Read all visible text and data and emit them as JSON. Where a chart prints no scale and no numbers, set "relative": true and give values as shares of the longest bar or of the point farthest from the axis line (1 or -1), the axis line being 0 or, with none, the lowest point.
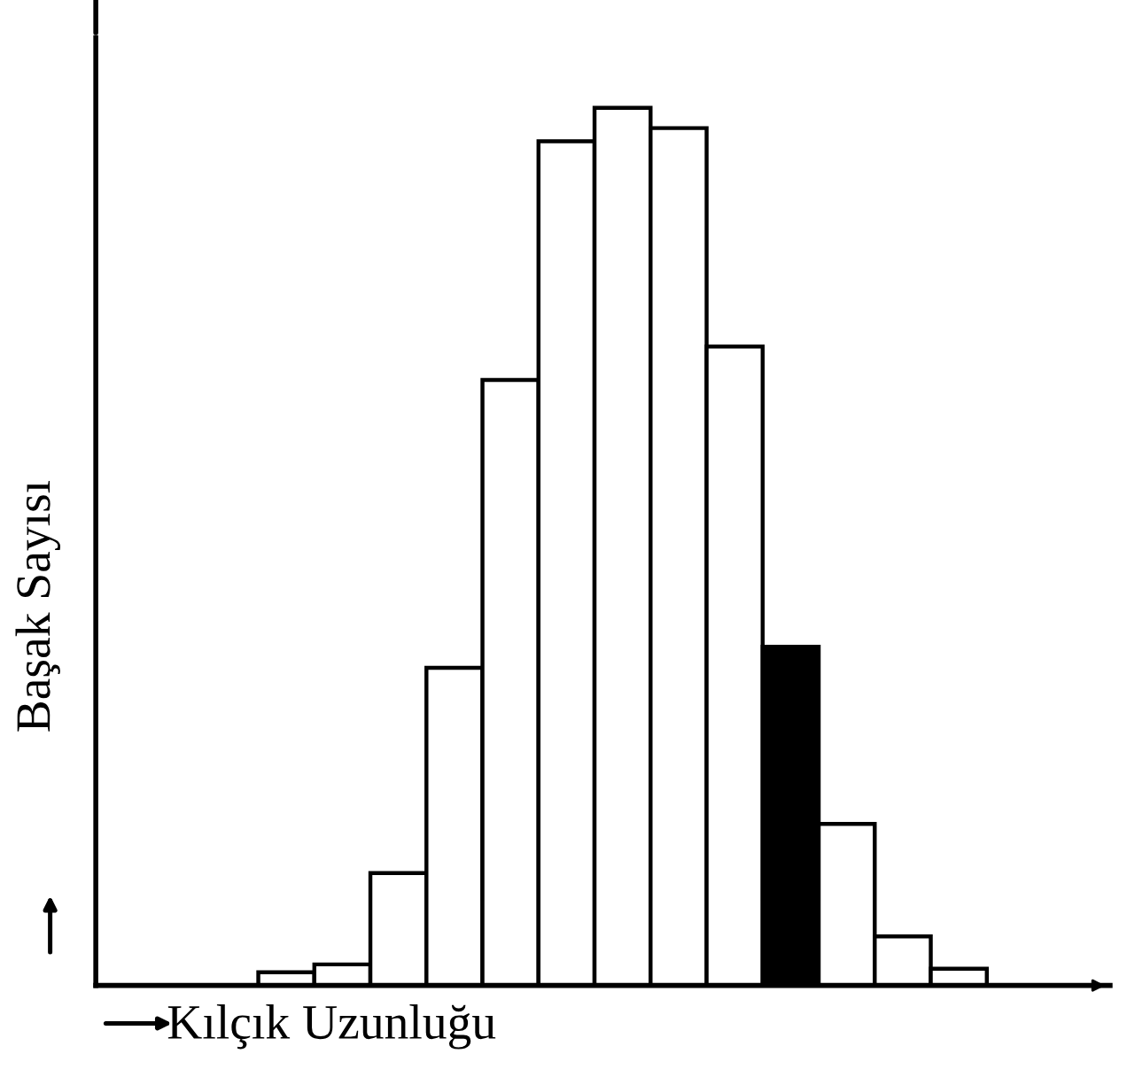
{
  "chart_data": {
    "type": "bar",
    "relative": true,
    "xlabel": "Kılçık Uzunluğu",
    "ylabel": "Başak Sayısı",
    "categories": [
      null,
      null,
      null,
      null,
      null,
      null,
      null,
      null,
      null,
      null,
      null,
      null,
      null
    ],
    "values": [
      0.015,
      0.024,
      0.128,
      0.362,
      0.69,
      0.962,
      1,
      0.977,
      0.728,
      0.386,
      0.184,
      0.056,
      0.019
    ],
    "colors": [
      "#ffffff",
      "#ffffff",
      "#ffffff",
      "#ffffff",
      "#ffffff",
      "#ffffff",
      "#ffffff",
      "#ffffff",
      "#ffffff",
      "#000000",
      "#ffffff",
      "#ffffff",
      "#ffffff"
    ],
    "grid": false
  }
}
